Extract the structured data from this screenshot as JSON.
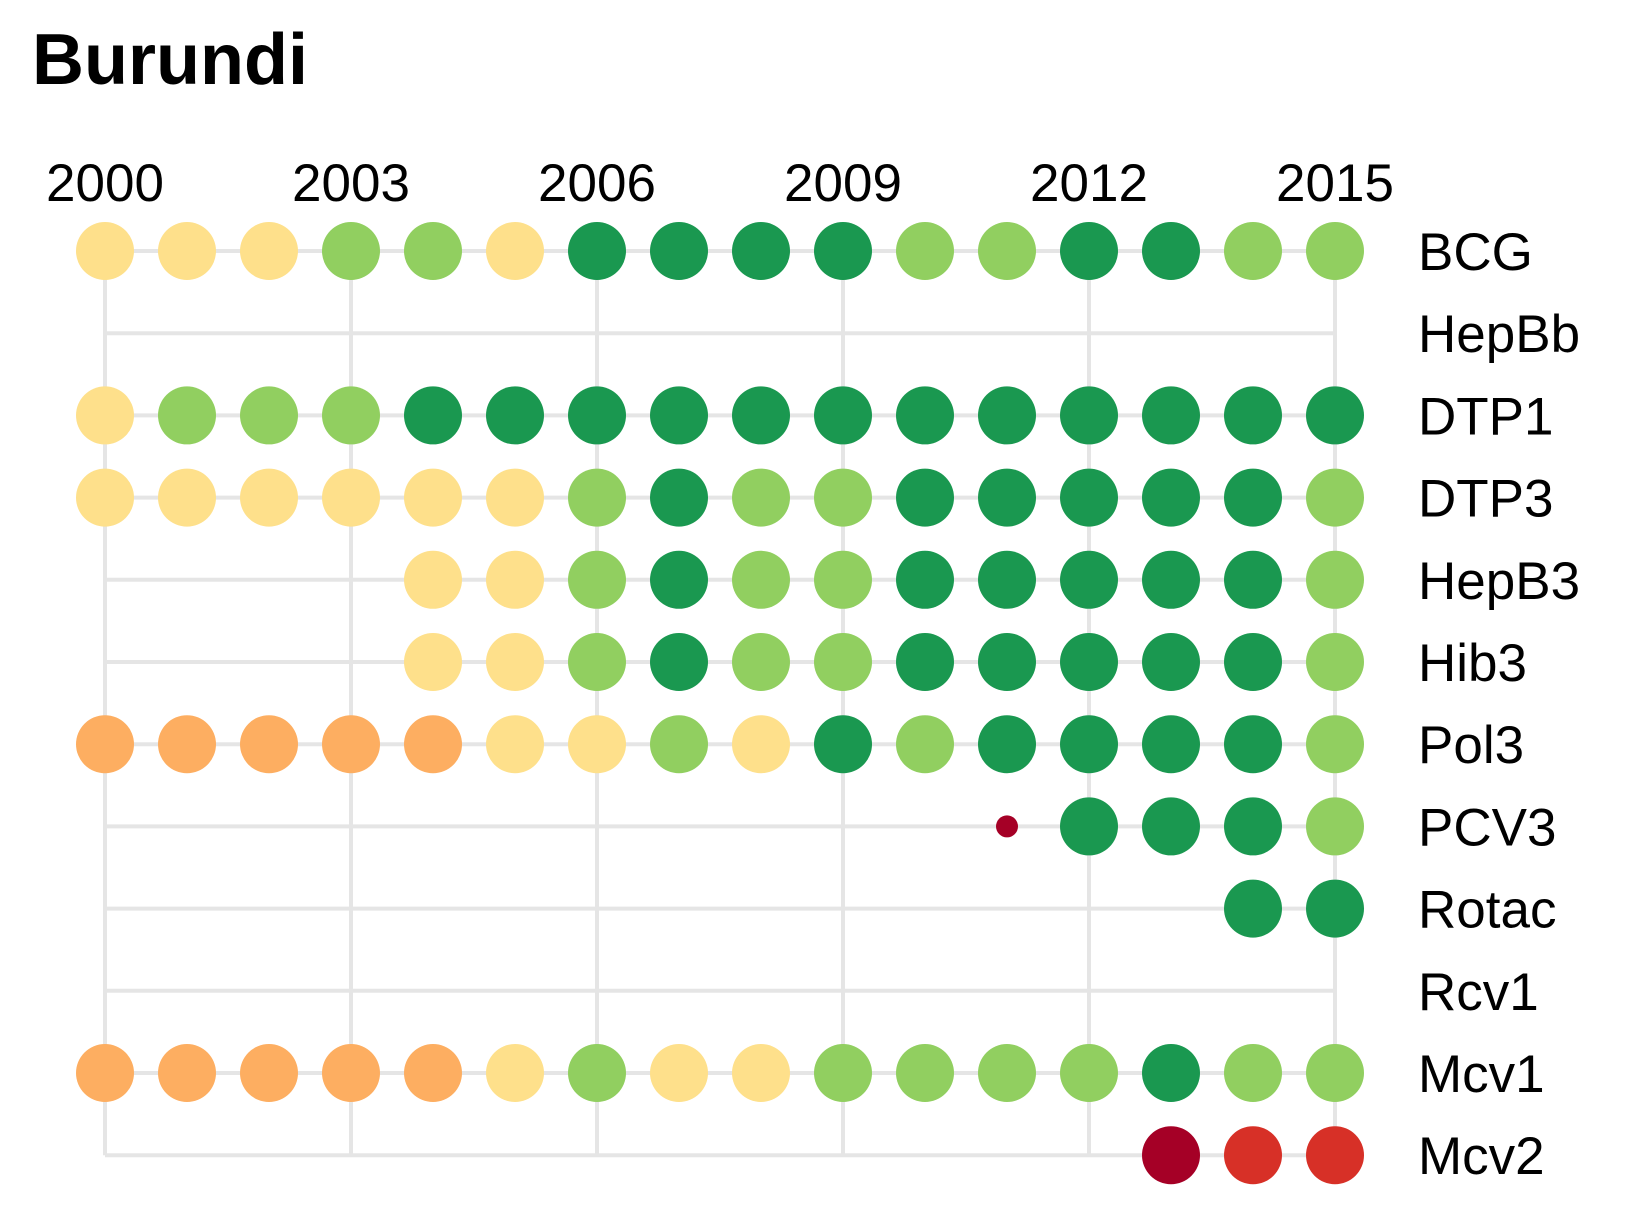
{
  "title": "Burundi",
  "chart_data": {
    "type": "dot-matrix",
    "title": "Burundi",
    "x": [
      2000,
      2001,
      2002,
      2003,
      2004,
      2005,
      2006,
      2007,
      2008,
      2009,
      2010,
      2011,
      2012,
      2013,
      2014,
      2015
    ],
    "x_tick_labels": [
      "2000",
      "2003",
      "2006",
      "2009",
      "2012",
      "2015"
    ],
    "x_axis_position": "top",
    "grid": true,
    "categories": [
      "BCG",
      "HepBb",
      "DTP1",
      "DTP3",
      "HepB3",
      "Hib3",
      "Pol3",
      "PCV3",
      "Rotac",
      "Rcv1",
      "Mcv1",
      "Mcv2"
    ],
    "level_colors": {
      "very_low": "#a50026",
      "low": "#d73027",
      "mid_low": "#fdae61",
      "mid_high": "#fee08b",
      "high": "#91cf60",
      "very_high": "#1a9850"
    },
    "series": [
      {
        "name": "BCG",
        "values": [
          "mid_high",
          "mid_high",
          "mid_high",
          "high",
          "high",
          "mid_high",
          "very_high",
          "very_high",
          "very_high",
          "very_high",
          "high",
          "high",
          "very_high",
          "very_high",
          "high",
          "high"
        ]
      },
      {
        "name": "HepBb",
        "values": [
          null,
          null,
          null,
          null,
          null,
          null,
          null,
          null,
          null,
          null,
          null,
          null,
          null,
          null,
          null,
          null
        ]
      },
      {
        "name": "DTP1",
        "values": [
          "mid_high",
          "high",
          "high",
          "high",
          "very_high",
          "very_high",
          "very_high",
          "very_high",
          "very_high",
          "very_high",
          "very_high",
          "very_high",
          "very_high",
          "very_high",
          "very_high",
          "very_high"
        ]
      },
      {
        "name": "DTP3",
        "values": [
          "mid_high",
          "mid_high",
          "mid_high",
          "mid_high",
          "mid_high",
          "mid_high",
          "high",
          "very_high",
          "high",
          "high",
          "very_high",
          "very_high",
          "very_high",
          "very_high",
          "very_high",
          "high"
        ]
      },
      {
        "name": "HepB3",
        "values": [
          null,
          null,
          null,
          null,
          "mid_high",
          "mid_high",
          "high",
          "very_high",
          "high",
          "high",
          "very_high",
          "very_high",
          "very_high",
          "very_high",
          "very_high",
          "high"
        ]
      },
      {
        "name": "Hib3",
        "values": [
          null,
          null,
          null,
          null,
          "mid_high",
          "mid_high",
          "high",
          "very_high",
          "high",
          "high",
          "very_high",
          "very_high",
          "very_high",
          "very_high",
          "very_high",
          "high"
        ]
      },
      {
        "name": "Pol3",
        "values": [
          "mid_low",
          "mid_low",
          "mid_low",
          "mid_low",
          "mid_low",
          "mid_high",
          "mid_high",
          "high",
          "mid_high",
          "very_high",
          "high",
          "very_high",
          "very_high",
          "very_high",
          "very_high",
          "high"
        ]
      },
      {
        "name": "PCV3",
        "values": [
          null,
          null,
          null,
          null,
          null,
          null,
          null,
          null,
          null,
          null,
          null,
          "very_low_small",
          "very_high",
          "very_high",
          "very_high",
          "high"
        ]
      },
      {
        "name": "Rotac",
        "values": [
          null,
          null,
          null,
          null,
          null,
          null,
          null,
          null,
          null,
          null,
          null,
          null,
          null,
          null,
          "very_high",
          "very_high"
        ]
      },
      {
        "name": "Rcv1",
        "values": [
          null,
          null,
          null,
          null,
          null,
          null,
          null,
          null,
          null,
          null,
          null,
          null,
          null,
          null,
          null,
          null
        ]
      },
      {
        "name": "Mcv1",
        "values": [
          "mid_low",
          "mid_low",
          "mid_low",
          "mid_low",
          "mid_low",
          "mid_high",
          "high",
          "mid_high",
          "mid_high",
          "high",
          "high",
          "high",
          "high",
          "very_high",
          "high",
          "high"
        ]
      },
      {
        "name": "Mcv2",
        "values": [
          null,
          null,
          null,
          null,
          null,
          null,
          null,
          null,
          null,
          null,
          null,
          null,
          null,
          "very_low",
          "low",
          "low"
        ]
      }
    ]
  }
}
